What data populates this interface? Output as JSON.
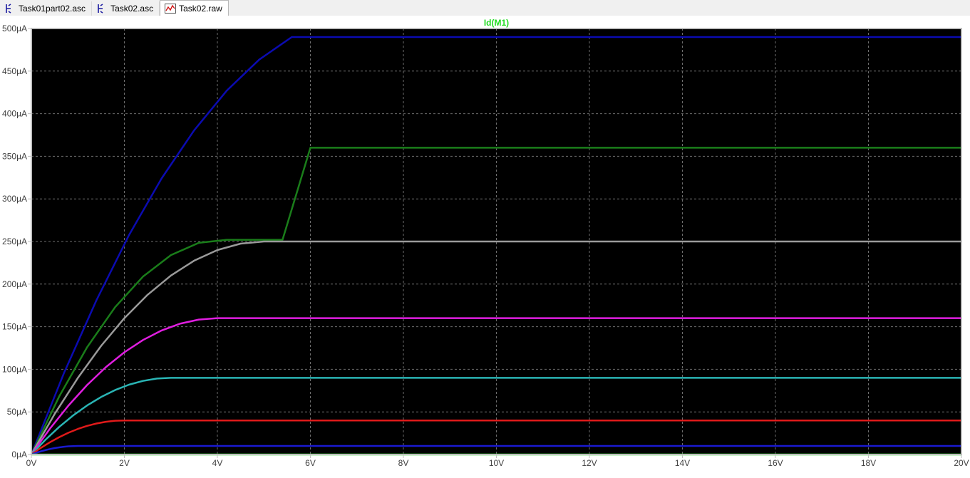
{
  "tabs": [
    {
      "label": "Task01part02.asc",
      "icon": "schematic-icon"
    },
    {
      "label": "Task02.asc",
      "icon": "schematic-icon"
    },
    {
      "label": "Task02.raw",
      "icon": "waveform-icon"
    }
  ],
  "colors": {
    "background": "#000000",
    "frame": "#bfbfbf",
    "grid": "#6e6e6e",
    "title": "#22dd22",
    "axis_text": "#404040"
  },
  "chart_data": {
    "type": "line",
    "title": "Id(M1)",
    "xlabel": "",
    "ylabel": "",
    "xlim": [
      0,
      20
    ],
    "ylim": [
      0,
      500
    ],
    "x_unit": "V",
    "y_unit": "µA",
    "grid": true,
    "x_ticks": [
      "0V",
      "2V",
      "4V",
      "6V",
      "8V",
      "10V",
      "12V",
      "14V",
      "16V",
      "18V",
      "20V"
    ],
    "y_ticks": [
      "0µA",
      "50µA",
      "100µA",
      "150µA",
      "200µA",
      "250µA",
      "300µA",
      "350µA",
      "400µA",
      "450µA",
      "500µA"
    ],
    "x_tick_values": [
      0,
      2,
      4,
      6,
      8,
      10,
      12,
      14,
      16,
      18,
      20
    ],
    "y_tick_values": [
      0,
      50,
      100,
      150,
      200,
      250,
      300,
      350,
      400,
      450,
      500
    ],
    "series": [
      {
        "color": "#0b0bb0",
        "x": [
          0,
          0.7,
          1.4,
          2.1,
          2.8,
          3.5,
          4.2,
          4.9,
          5.6,
          6.3,
          7.0,
          20
        ],
        "y": [
          0,
          95.5,
          181,
          257.5,
          324,
          380.5,
          427,
          463.5,
          490,
          490,
          490,
          490
        ]
      },
      {
        "color": "#1a7d1a",
        "x": [
          0,
          0.6,
          1.2,
          1.8,
          2.4,
          3.0,
          3.6,
          4.2,
          4.8,
          5.4,
          6.0,
          20
        ],
        "y": [
          0,
          68.4,
          126,
          172.8,
          208.8,
          234,
          248.4,
          252,
          252,
          252,
          360,
          360
        ]
      },
      {
        "color": "#9a9a9a",
        "x": [
          0,
          0.5,
          1.0,
          1.5,
          2.0,
          2.5,
          3.0,
          3.5,
          4.0,
          4.5,
          5.0,
          20
        ],
        "y": [
          0,
          47.5,
          90,
          127.5,
          160,
          187.5,
          210,
          227.5,
          240,
          247.5,
          250,
          250
        ]
      },
      {
        "color": "#e01ee0",
        "x": [
          0,
          0.4,
          0.8,
          1.2,
          1.6,
          2.0,
          2.4,
          2.8,
          3.2,
          3.6,
          4.0,
          20
        ],
        "y": [
          0,
          30.4,
          57.6,
          81.6,
          102.4,
          120,
          134.4,
          145.6,
          153.6,
          158.4,
          160,
          160
        ]
      },
      {
        "color": "#2ab5b5",
        "x": [
          0,
          0.3,
          0.6,
          0.9,
          1.2,
          1.5,
          1.8,
          2.1,
          2.4,
          2.7,
          3.0,
          20
        ],
        "y": [
          0,
          17.1,
          32.4,
          45.9,
          57.6,
          67.5,
          75.6,
          81.9,
          86.4,
          89.1,
          90,
          90
        ]
      },
      {
        "color": "#e01a1a",
        "x": [
          0,
          0.2,
          0.4,
          0.6,
          0.8,
          1.0,
          1.2,
          1.4,
          1.6,
          1.8,
          2.0,
          20
        ],
        "y": [
          0,
          7.6,
          14.4,
          20.4,
          25.6,
          30,
          33.6,
          36.4,
          38.4,
          39.6,
          40,
          40
        ]
      },
      {
        "color": "#1a1ad0",
        "x": [
          0,
          0.1,
          0.2,
          0.3,
          0.4,
          0.5,
          0.6,
          0.7,
          0.8,
          0.9,
          1.0,
          20
        ],
        "y": [
          0,
          1.9,
          3.6,
          5.1,
          6.4,
          7.5,
          8.4,
          9.1,
          9.6,
          9.9,
          10,
          10
        ]
      },
      {
        "color": "#22dd22",
        "x": [
          0,
          20
        ],
        "y": [
          0,
          0
        ]
      }
    ]
  }
}
